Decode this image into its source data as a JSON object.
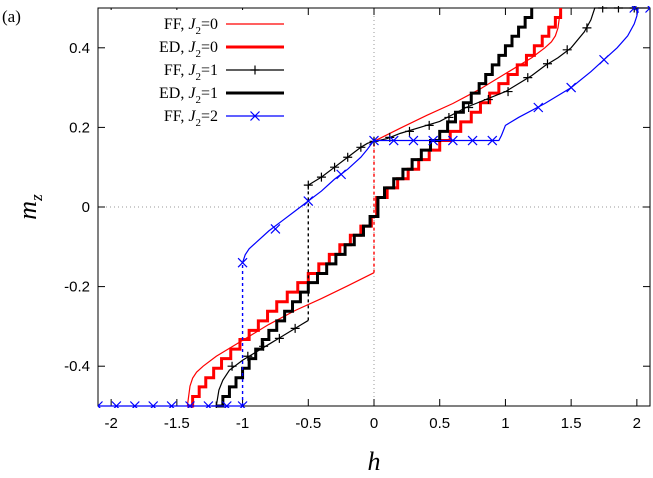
{
  "chart_data": {
    "type": "line",
    "panel_label": "(a)",
    "xlabel": "h",
    "ylabel": "m",
    "ylabel_sub": "z",
    "xlim": [
      -2.1,
      2.1
    ],
    "ylim": [
      -0.5,
      0.5
    ],
    "xticks": [
      -2,
      -1.5,
      -1,
      -0.5,
      0,
      0.5,
      1,
      1.5,
      2
    ],
    "xtick_labels": [
      "-2",
      "-1.5",
      "-1",
      "-0.5",
      "0",
      "0.5",
      "1",
      "1.5",
      "2"
    ],
    "yticks": [
      -0.4,
      -0.2,
      0,
      0.2,
      0.4
    ],
    "ytick_labels": [
      "-0.4",
      "-0.2",
      "0",
      "0.2",
      "0.4"
    ],
    "reference_lines": {
      "x": 0,
      "y": 0,
      "style": "dotted"
    },
    "legend_position": "top-left",
    "series": [
      {
        "name": "FF, J2=0",
        "legend_prefix": "FF, ",
        "legend_symbol": "J",
        "legend_sub": "2",
        "legend_suffix": "=0",
        "color": "#ff0000",
        "width": 1.2,
        "marker": "none",
        "segments": [
          [
            [
              -1.42,
              -0.5
            ],
            [
              -1.4,
              -0.45
            ],
            [
              -1.38,
              -0.43
            ],
            [
              -1.35,
              -0.415
            ],
            [
              -1.3,
              -0.4
            ],
            [
              -1.2,
              -0.375
            ],
            [
              -1.0,
              -0.335
            ],
            [
              -0.8,
              -0.295
            ],
            [
              -0.6,
              -0.26
            ],
            [
              -0.4,
              -0.23
            ],
            [
              -0.2,
              -0.198
            ],
            [
              0,
              -0.165
            ]
          ],
          [
            [
              0,
              0.165
            ],
            [
              0.2,
              0.198
            ],
            [
              0.4,
              0.23
            ],
            [
              0.6,
              0.26
            ],
            [
              0.8,
              0.295
            ],
            [
              1.0,
              0.335
            ],
            [
              1.2,
              0.375
            ],
            [
              1.3,
              0.4
            ],
            [
              1.35,
              0.415
            ],
            [
              1.38,
              0.43
            ],
            [
              1.4,
              0.45
            ],
            [
              1.42,
              0.5
            ]
          ]
        ],
        "dashed_links": [
          [
            [
              0,
              -0.165
            ],
            [
              0,
              0.165
            ]
          ]
        ]
      },
      {
        "name": "ED, J2=0",
        "legend_prefix": "ED, ",
        "legend_symbol": "J",
        "legend_sub": "2",
        "legend_suffix": "=0",
        "color": "#ff0000",
        "width": 3,
        "marker": "none",
        "staircase": true,
        "x": [
          -1.42,
          -1.38,
          -1.33,
          -1.28,
          -1.22,
          -1.16,
          -1.09,
          -1.02,
          -0.95,
          -0.88,
          -0.81,
          -0.74,
          -0.66,
          -0.58,
          -0.5,
          -0.42,
          -0.34,
          -0.26,
          -0.18,
          -0.1,
          -0.02,
          0.02,
          0.1,
          0.18,
          0.26,
          0.34,
          0.42,
          0.5,
          0.58,
          0.66,
          0.74,
          0.81,
          0.88,
          0.95,
          1.02,
          1.09,
          1.16,
          1.22,
          1.28,
          1.33,
          1.38,
          1.42
        ],
        "y": [
          -0.5,
          -0.476,
          -0.452,
          -0.429,
          -0.405,
          -0.381,
          -0.357,
          -0.333,
          -0.31,
          -0.286,
          -0.262,
          -0.238,
          -0.214,
          -0.19,
          -0.167,
          -0.143,
          -0.119,
          -0.095,
          -0.071,
          -0.048,
          -0.024,
          0.024,
          0.048,
          0.071,
          0.095,
          0.119,
          0.143,
          0.167,
          0.19,
          0.214,
          0.238,
          0.262,
          0.286,
          0.31,
          0.333,
          0.357,
          0.381,
          0.405,
          0.429,
          0.452,
          0.476,
          0.5
        ]
      },
      {
        "name": "FF, J2=1",
        "legend_prefix": "FF, ",
        "legend_symbol": "J",
        "legend_sub": "2",
        "legend_suffix": "=1",
        "color": "#000000",
        "width": 1.2,
        "marker": "plus",
        "segments": [
          [
            [
              -1.2,
              -0.5
            ],
            [
              -1.18,
              -0.46
            ],
            [
              -1.15,
              -0.435
            ],
            [
              -1.1,
              -0.41
            ],
            [
              -1.0,
              -0.385
            ],
            [
              -0.9,
              -0.365
            ],
            [
              -0.8,
              -0.345
            ],
            [
              -0.7,
              -0.325
            ],
            [
              -0.6,
              -0.305
            ],
            [
              -0.55,
              -0.295
            ],
            [
              -0.5,
              -0.285
            ]
          ],
          [
            [
              -0.5,
              0.055
            ],
            [
              -0.4,
              0.075
            ],
            [
              -0.3,
              0.1
            ],
            [
              -0.2,
              0.125
            ],
            [
              -0.1,
              0.15
            ],
            [
              -0.05,
              0.16
            ],
            [
              0,
              0.165
            ],
            [
              0.05,
              0.168
            ],
            [
              0.1,
              0.172
            ],
            [
              0.2,
              0.185
            ],
            [
              0.5,
              0.215
            ],
            [
              0.7,
              0.25
            ],
            [
              1.0,
              0.29
            ],
            [
              1.2,
              0.33
            ],
            [
              1.3,
              0.355
            ],
            [
              1.4,
              0.375
            ],
            [
              1.5,
              0.4
            ],
            [
              1.6,
              0.44
            ],
            [
              1.65,
              0.47
            ],
            [
              1.68,
              0.5
            ],
            [
              2.1,
              0.5
            ]
          ]
        ],
        "dashed_links": [
          [
            [
              -0.5,
              -0.285
            ],
            [
              -0.5,
              0.055
            ]
          ]
        ],
        "marker_points": [
          [
            -1.2,
            -0.5
          ],
          [
            -1.08,
            -0.4
          ],
          [
            -0.96,
            -0.375
          ],
          [
            -0.84,
            -0.35
          ],
          [
            -0.72,
            -0.33
          ],
          [
            -0.6,
            -0.305
          ],
          [
            -0.5,
            0.055
          ],
          [
            -0.4,
            0.075
          ],
          [
            -0.3,
            0.1
          ],
          [
            -0.2,
            0.125
          ],
          [
            -0.1,
            0.15
          ],
          [
            0,
            0.165
          ],
          [
            0.12,
            0.175
          ],
          [
            0.27,
            0.19
          ],
          [
            0.42,
            0.205
          ],
          [
            0.57,
            0.225
          ],
          [
            0.72,
            0.25
          ],
          [
            0.87,
            0.27
          ],
          [
            1.02,
            0.29
          ],
          [
            1.17,
            0.325
          ],
          [
            1.32,
            0.36
          ],
          [
            1.47,
            0.395
          ],
          [
            1.62,
            0.45
          ],
          [
            1.74,
            0.5
          ],
          [
            1.86,
            0.5
          ],
          [
            1.98,
            0.5
          ]
        ]
      },
      {
        "name": "ED, J2=1",
        "legend_prefix": "ED, ",
        "legend_symbol": "J",
        "legend_sub": "2",
        "legend_suffix": "=1",
        "color": "#000000",
        "width": 3,
        "marker": "none",
        "staircase": true,
        "x": [
          -1.2,
          -1.15,
          -1.1,
          -1.05,
          -1.0,
          -0.95,
          -0.9,
          -0.85,
          -0.8,
          -0.74,
          -0.68,
          -0.62,
          -0.56,
          -0.5,
          -0.43,
          -0.36,
          -0.29,
          -0.22,
          -0.15,
          -0.08,
          -0.03,
          0.03,
          0.08,
          0.15,
          0.22,
          0.29,
          0.36,
          0.43,
          0.5,
          0.56,
          0.62,
          0.68,
          0.74,
          0.8,
          0.85,
          0.9,
          0.95,
          1.0,
          1.05,
          1.1,
          1.15,
          1.2
        ],
        "y": [
          -0.5,
          -0.476,
          -0.452,
          -0.429,
          -0.405,
          -0.381,
          -0.357,
          -0.333,
          -0.31,
          -0.286,
          -0.262,
          -0.238,
          -0.214,
          -0.19,
          -0.167,
          -0.143,
          -0.119,
          -0.095,
          -0.071,
          -0.048,
          -0.024,
          0.024,
          0.048,
          0.071,
          0.095,
          0.119,
          0.143,
          0.167,
          0.19,
          0.214,
          0.238,
          0.262,
          0.286,
          0.31,
          0.333,
          0.357,
          0.381,
          0.405,
          0.429,
          0.452,
          0.476,
          0.5
        ]
      },
      {
        "name": "FF, J2=2",
        "legend_prefix": "FF, ",
        "legend_symbol": "J",
        "legend_sub": "2",
        "legend_suffix": "=2",
        "color": "#0000ff",
        "width": 1.2,
        "marker": "cross",
        "segments": [
          [
            [
              -2.1,
              -0.5
            ],
            [
              -1.0,
              -0.5
            ]
          ],
          [
            [
              -1.0,
              -0.14
            ],
            [
              -0.98,
              -0.12
            ],
            [
              -0.95,
              -0.105
            ],
            [
              -0.9,
              -0.09
            ],
            [
              -0.8,
              -0.06
            ],
            [
              -0.7,
              -0.035
            ],
            [
              -0.6,
              -0.01
            ],
            [
              -0.5,
              0.015
            ],
            [
              -0.4,
              0.04
            ],
            [
              -0.3,
              0.07
            ],
            [
              -0.2,
              0.095
            ],
            [
              -0.1,
              0.125
            ],
            [
              -0.05,
              0.145
            ],
            [
              0,
              0.167
            ],
            [
              0.95,
              0.167
            ],
            [
              0.97,
              0.18
            ],
            [
              1.0,
              0.205
            ],
            [
              1.1,
              0.225
            ],
            [
              1.3,
              0.26
            ],
            [
              1.5,
              0.3
            ],
            [
              1.65,
              0.34
            ],
            [
              1.75,
              0.37
            ],
            [
              1.85,
              0.4
            ],
            [
              1.93,
              0.43
            ],
            [
              1.98,
              0.46
            ],
            [
              2.0,
              0.48
            ],
            [
              2.01,
              0.5
            ]
          ]
        ],
        "dashed_links": [
          [
            [
              -1.0,
              -0.5
            ],
            [
              -1.0,
              -0.14
            ]
          ]
        ],
        "marker_points": [
          [
            -2.1,
            -0.5
          ],
          [
            -1.96,
            -0.5
          ],
          [
            -1.82,
            -0.5
          ],
          [
            -1.68,
            -0.5
          ],
          [
            -1.54,
            -0.5
          ],
          [
            -1.4,
            -0.5
          ],
          [
            -1.26,
            -0.5
          ],
          [
            -1.12,
            -0.5
          ],
          [
            -1.0,
            -0.5
          ],
          [
            -1.0,
            -0.14
          ],
          [
            -0.75,
            -0.055
          ],
          [
            -0.5,
            0.015
          ],
          [
            -0.25,
            0.082
          ],
          [
            0,
            0.167
          ],
          [
            0.15,
            0.167
          ],
          [
            0.3,
            0.167
          ],
          [
            0.45,
            0.167
          ],
          [
            0.6,
            0.167
          ],
          [
            0.75,
            0.167
          ],
          [
            0.9,
            0.167
          ],
          [
            1.25,
            0.25
          ],
          [
            1.5,
            0.3
          ],
          [
            1.75,
            0.37
          ],
          [
            1.98,
            0.5
          ],
          [
            2.1,
            0.5
          ]
        ]
      }
    ]
  }
}
